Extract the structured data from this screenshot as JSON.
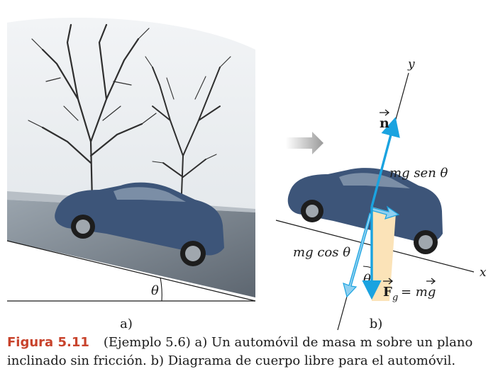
{
  "panel_a": {
    "label": "a)",
    "angle_label": "θ"
  },
  "panel_b": {
    "label": "b)",
    "axis_x": "x",
    "axis_y": "y",
    "normal_force": "n",
    "component_parallel": "mg sen θ",
    "component_perpendicular": "mg cos θ",
    "angle_label": "θ",
    "gravity_force": "F",
    "gravity_subscript": "g",
    "gravity_equation": "= mg"
  },
  "caption": {
    "figure_label": "Figura 5.11",
    "text_line1": "(Ejemplo 5.6) a) Un automóvil de masa m sobre un plano",
    "text_line2": "inclinado sin fricción. b) Diagrama de cuerpo libre para el automóvil."
  },
  "colors": {
    "force_arrow": "#1aa3e0",
    "component_arrow": "#8fd0f0",
    "angle_wedge": "#fbe3b8",
    "car_body": "#3d5579",
    "caption_label": "#c8432c"
  }
}
